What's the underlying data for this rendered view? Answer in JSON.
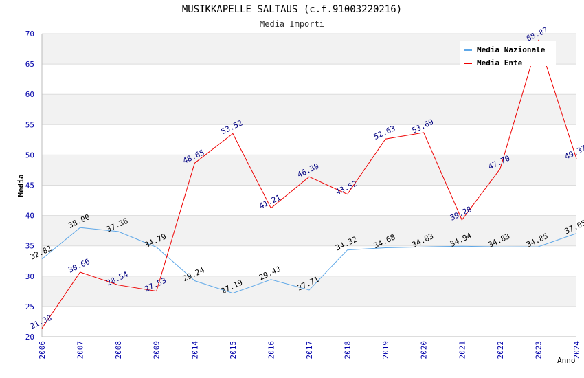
{
  "chart_data": {
    "type": "line",
    "title": "MUSIKKAPELLE SALTAUS (c.f.91003220216)",
    "subtitle": "Media Importi",
    "xlabel": "Anno",
    "ylabel": "Media",
    "ylim": [
      20,
      70
    ],
    "yticks": [
      20,
      25,
      30,
      35,
      40,
      45,
      50,
      55,
      60,
      65,
      70
    ],
    "grid": true,
    "legend_position": "top-right",
    "categories": [
      "2006",
      "2007",
      "2008",
      "2009",
      "2014",
      "2015",
      "2016",
      "2017",
      "2018",
      "2019",
      "2020",
      "2021",
      "2022",
      "2023",
      "2024"
    ],
    "series": [
      {
        "name": "Media Nazionale",
        "color": "#5fa8e8",
        "label_color": "#000000",
        "values": [
          32.82,
          38.0,
          37.36,
          34.79,
          29.24,
          27.19,
          29.43,
          27.71,
          34.32,
          34.68,
          34.83,
          34.94,
          34.83,
          34.85,
          37.05
        ],
        "labels": [
          "32.82",
          "38.00",
          "37.36",
          "34.79",
          "29.24",
          "27.19",
          "29.43",
          "27.71",
          "34.32",
          "34.68",
          "34.83",
          "34.94",
          "34.83",
          "34.85",
          "37.05"
        ]
      },
      {
        "name": "Media Ente",
        "color": "#ee0000",
        "label_color": "#000080",
        "values": [
          21.38,
          30.66,
          28.54,
          27.53,
          48.65,
          53.52,
          41.21,
          46.39,
          43.52,
          52.63,
          53.69,
          39.28,
          47.7,
          68.87,
          49.37
        ],
        "labels": [
          "21.38",
          "30.66",
          "28.54",
          "27.53",
          "48.65",
          "53.52",
          "41.21",
          "46.39",
          "43.52",
          "52.63",
          "53.69",
          "39.28",
          "47.70",
          "68.87",
          "49.37"
        ]
      }
    ]
  }
}
